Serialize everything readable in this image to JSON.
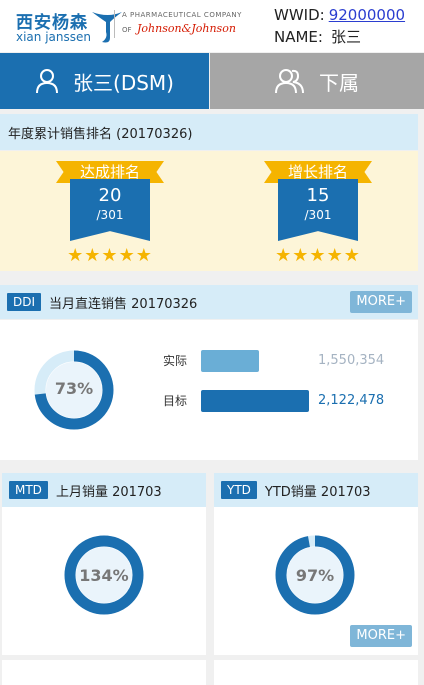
{
  "header": {
    "brand_cn": "西安杨森",
    "brand_en": "xian janssen",
    "company_line": "A PHARMACEUTICAL COMPANY",
    "company_of": "OF",
    "company_logo_text": "Johnson&Johnson",
    "wwid_label": "WWID:",
    "wwid_value": "92000000",
    "name_label": "NAME:",
    "name_value": "张三"
  },
  "tabs": [
    {
      "label": "张三(DSM)",
      "icon": "person-icon",
      "active": true
    },
    {
      "label": "下属",
      "icon": "group-icon",
      "active": false
    }
  ],
  "ranking": {
    "title": "年度累计销售排名 (20170326)",
    "items": [
      {
        "label": "达成排名",
        "rank": "20",
        "total": "/301",
        "stars": 5
      },
      {
        "label": "增长排名",
        "rank": "15",
        "total": "/301",
        "stars": 5
      }
    ]
  },
  "ddi": {
    "badge": "DDI",
    "title": "当月直连销售 20170326",
    "more": "MORE+",
    "percent": 0.73,
    "percent_label": "73%",
    "actual_label": "实际",
    "actual_value": "1,550,354",
    "target_label": "目标",
    "target_value": "2,122,478"
  },
  "mtd": {
    "badge": "MTD",
    "title": "上月销量 201703",
    "percent": 1.34,
    "percent_label": "134%"
  },
  "ytd": {
    "badge": "YTD",
    "title": "YTD销量 201703",
    "percent": 0.97,
    "percent_label": "97%",
    "more": "MORE+"
  },
  "colors": {
    "primary": "#1b6fb0",
    "light_blue": "#d6ecf8",
    "gold": "#f5b400",
    "cream": "#fdf5d8",
    "grey_tab": "#a6a6a6",
    "bar_actual": "#6aaed6"
  }
}
